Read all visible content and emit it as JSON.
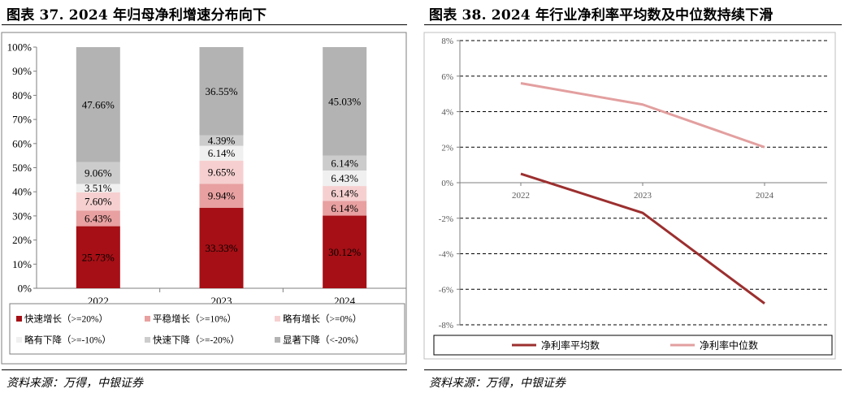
{
  "left": {
    "title": "图表 37. 2024 年归母净利增速分布向下",
    "source": "资料来源：万得，中银证券"
  },
  "right": {
    "title": "图表 38. 2024 年行业净利率平均数及中位数持续下滑",
    "source": "资料来源：万得，中银证券"
  },
  "colors": {
    "s1": "#a50f15",
    "s2": "#e8a0a0",
    "s3": "#f6d0d0",
    "s4": "#f0f0f0",
    "s5": "#cccccc",
    "s6": "#b3b3b3",
    "avg": "#9c2f2f",
    "median": "#e39f9f"
  },
  "chart_data": [
    {
      "type": "bar",
      "stacked": true,
      "categories": [
        "2022",
        "2023",
        "2024"
      ],
      "series": [
        {
          "name": "快速增长（>=20%）",
          "values": [
            25.73,
            33.33,
            30.12
          ],
          "labels": [
            "25.73%",
            "33.33%",
            "30.12%"
          ]
        },
        {
          "name": "平稳增长（>=10%）",
          "values": [
            6.43,
            9.94,
            6.14
          ],
          "labels": [
            "6.43%",
            "9.94%",
            "6.14%"
          ]
        },
        {
          "name": "略有增长（>=0%）",
          "values": [
            7.6,
            9.65,
            6.14
          ],
          "labels": [
            "7.60%",
            "9.65%",
            "6.14%"
          ]
        },
        {
          "name": "略有下降（>=-10%）",
          "values": [
            3.51,
            6.14,
            6.43
          ],
          "labels": [
            "3.51%",
            "6.14%",
            "6.43%"
          ]
        },
        {
          "name": "快速下降（>=-20%）",
          "values": [
            9.06,
            4.39,
            6.14
          ],
          "labels": [
            "9.06%",
            "4.39%",
            "6.14%"
          ]
        },
        {
          "name": "显著下降（<-20%）",
          "values": [
            47.66,
            36.55,
            45.03
          ],
          "labels": [
            "47.66%",
            "36.55%",
            "45.03%"
          ]
        }
      ],
      "ylim": [
        0,
        100
      ],
      "yticks": [
        "0%",
        "10%",
        "20%",
        "30%",
        "40%",
        "50%",
        "60%",
        "70%",
        "80%",
        "90%",
        "100%"
      ],
      "legend": "bottom"
    },
    {
      "type": "line",
      "x": [
        "2022",
        "2023",
        "2024"
      ],
      "series": [
        {
          "name": "净利率平均数",
          "values": [
            0.5,
            -1.7,
            -6.8
          ]
        },
        {
          "name": "净利率中位数",
          "values": [
            5.6,
            4.4,
            2.0
          ]
        }
      ],
      "ylim": [
        -8,
        8
      ],
      "yticks": [
        "-8%",
        "-6%",
        "-4%",
        "-2%",
        "0%",
        "2%",
        "4%",
        "6%",
        "8%"
      ],
      "grid": true,
      "legend": "bottom"
    }
  ]
}
